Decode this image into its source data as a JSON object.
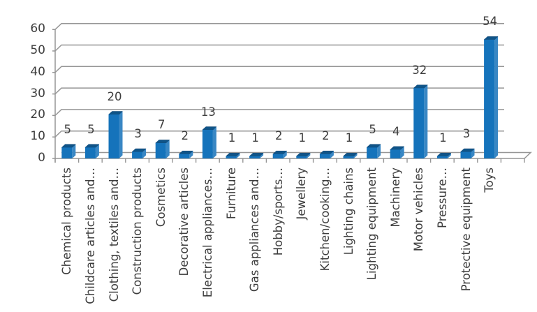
{
  "chart_data": {
    "type": "bar",
    "effect": "3d-column",
    "title": "",
    "xlabel": "",
    "ylabel": "",
    "categories": [
      "Chemical products",
      "Childcare articles and…",
      "Clothing, textiles and…",
      "Construction products",
      "Cosmetics",
      "Decorative articles",
      "Electrical appliances…",
      "Furniture",
      "Gas appliances and…",
      "Hobby/sports…",
      "Jewellery",
      "Kitchen/cooking…",
      "Lighting chains",
      "Lighting equipment",
      "Machinery",
      "Motor vehicles",
      "Pressure…",
      "Protective equipment",
      "Toys"
    ],
    "values": [
      5,
      5,
      20,
      3,
      7,
      2,
      13,
      1,
      1,
      2,
      1,
      2,
      1,
      5,
      4,
      32,
      1,
      3,
      54
    ],
    "data_labels": [
      "5",
      "5",
      "20",
      "3",
      "7",
      "2",
      "13",
      "1",
      "1",
      "2",
      "1",
      "2",
      "1",
      "5",
      "4",
      "32",
      "1",
      "3",
      "54"
    ],
    "yticks": [
      0,
      10,
      20,
      30,
      40,
      50,
      60
    ],
    "ylim": [
      0,
      60
    ],
    "grid": true,
    "legend": false,
    "colors": {
      "bar_front": "#1573bb",
      "bar_top": "#0f5488",
      "bar_side": "#3987c4",
      "grid_line": "#969696",
      "text": "#3d3d3d",
      "background": "#ffffff"
    }
  }
}
